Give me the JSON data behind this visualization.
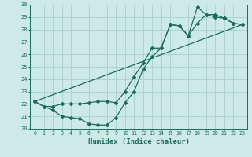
{
  "xlabel": "Humidex (Indice chaleur)",
  "xlim": [
    -0.5,
    23.5
  ],
  "ylim": [
    20,
    30
  ],
  "xticks": [
    0,
    1,
    2,
    3,
    4,
    5,
    6,
    7,
    8,
    9,
    10,
    11,
    12,
    13,
    14,
    15,
    16,
    17,
    18,
    19,
    20,
    21,
    22,
    23
  ],
  "yticks": [
    20,
    21,
    22,
    23,
    24,
    25,
    26,
    27,
    28,
    29,
    30
  ],
  "bg_color": "#ceeae6",
  "grid_color": "#aad4ce",
  "line_color": "#1a6b5e",
  "line1_x": [
    0,
    1,
    2,
    3,
    4,
    5,
    6,
    7,
    8,
    9,
    10,
    11,
    12,
    13,
    14,
    15,
    16,
    17,
    18,
    19,
    20,
    21,
    22,
    23
  ],
  "line1_y": [
    22.2,
    21.8,
    21.5,
    21.0,
    20.9,
    20.8,
    20.4,
    20.3,
    20.3,
    20.9,
    22.1,
    23.0,
    24.8,
    25.8,
    26.5,
    28.4,
    28.3,
    27.5,
    28.5,
    29.2,
    29.0,
    28.9,
    28.5,
    28.4
  ],
  "line2_x": [
    0,
    1,
    2,
    3,
    4,
    5,
    6,
    7,
    8,
    9,
    10,
    11,
    12,
    13,
    14,
    15,
    16,
    17,
    18,
    19,
    20,
    21,
    22,
    23
  ],
  "line2_y": [
    22.2,
    21.8,
    21.8,
    22.0,
    22.0,
    22.0,
    22.1,
    22.2,
    22.2,
    22.1,
    23.0,
    24.2,
    25.3,
    26.5,
    26.5,
    28.4,
    28.3,
    27.5,
    29.8,
    29.2,
    29.2,
    28.9,
    28.5,
    28.4
  ],
  "line3_x": [
    0,
    23
  ],
  "line3_y": [
    22.2,
    28.4
  ]
}
